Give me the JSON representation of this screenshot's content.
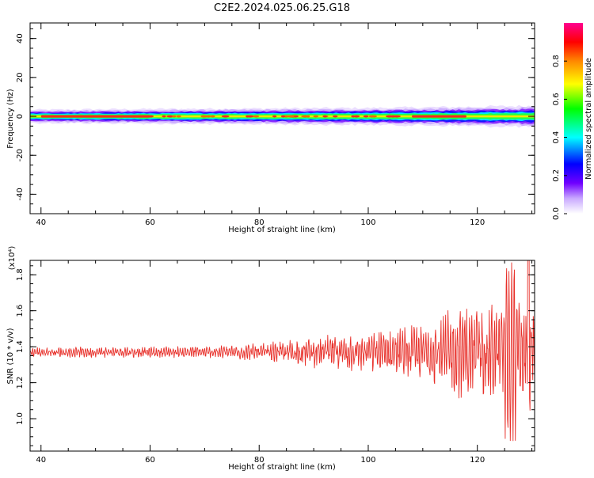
{
  "figure": {
    "title": "C2E2.2024.025.06.25.G18"
  },
  "chart_data": [
    {
      "type": "heatmap",
      "xlabel": "Height of straight line (km)",
      "ylabel": "Frequency (Hz)",
      "xlim": [
        38,
        130.5
      ],
      "ylim": [
        -50,
        48
      ],
      "xticks": [
        "40",
        "60",
        "80",
        "100",
        "120"
      ],
      "xtick_values": [
        40,
        60,
        80,
        100,
        120
      ],
      "yticks": [
        "40",
        "20",
        "0",
        "-20",
        "-40"
      ],
      "ytick_values": [
        40,
        20,
        0,
        -20,
        -40
      ],
      "colorbar": {
        "label": "Normalized spectral amplitude",
        "range": [
          0,
          1
        ],
        "ticks": [
          "0.0",
          "0.2",
          "0.4",
          "0.6",
          "0.8"
        ],
        "tick_values": [
          0.0,
          0.2,
          0.4,
          0.6,
          0.8
        ],
        "colormap": "rainbow"
      },
      "band": {
        "center_frequency": 0,
        "half_width_hz_by_height": [
          {
            "x": 38,
            "w": 2.5
          },
          {
            "x": 60,
            "w": 2.8
          },
          {
            "x": 80,
            "w": 3.0
          },
          {
            "x": 100,
            "w": 3.2
          },
          {
            "x": 118,
            "w": 3.6
          },
          {
            "x": 130.5,
            "w": 4.0
          }
        ],
        "peak_segments": [
          {
            "x0": 40,
            "x1": 60
          },
          {
            "x0": 108,
            "x1": 118
          }
        ]
      }
    },
    {
      "type": "line",
      "xlabel": "Height of straight line (km)",
      "ylabel": "SNR (10 * v/v)",
      "scale_label": "(x10⁴)",
      "xlim": [
        38,
        130.5
      ],
      "ylim": [
        0.82,
        1.88
      ],
      "xticks": [
        "40",
        "60",
        "80",
        "100",
        "120"
      ],
      "xtick_values": [
        40,
        60,
        80,
        100,
        120
      ],
      "yticks": [
        "1.0",
        "1.2",
        "1.4",
        "1.6",
        "1.8"
      ],
      "ytick_values": [
        1.0,
        1.2,
        1.4,
        1.6,
        1.8
      ],
      "series": [
        {
          "color": "#e8302a",
          "base_level": 1.37,
          "envelope": [
            {
              "x": 38,
              "amp": 0.03
            },
            {
              "x": 70,
              "amp": 0.035
            },
            {
              "x": 80,
              "amp": 0.05
            },
            {
              "x": 90,
              "amp": 0.09
            },
            {
              "x": 100,
              "amp": 0.12
            },
            {
              "x": 110,
              "amp": 0.16
            },
            {
              "x": 115,
              "amp": 0.25
            },
            {
              "x": 120,
              "amp": 0.28
            },
            {
              "x": 125,
              "amp": 0.3
            },
            {
              "x": 130.5,
              "amp": 0.35
            }
          ]
        }
      ]
    }
  ]
}
